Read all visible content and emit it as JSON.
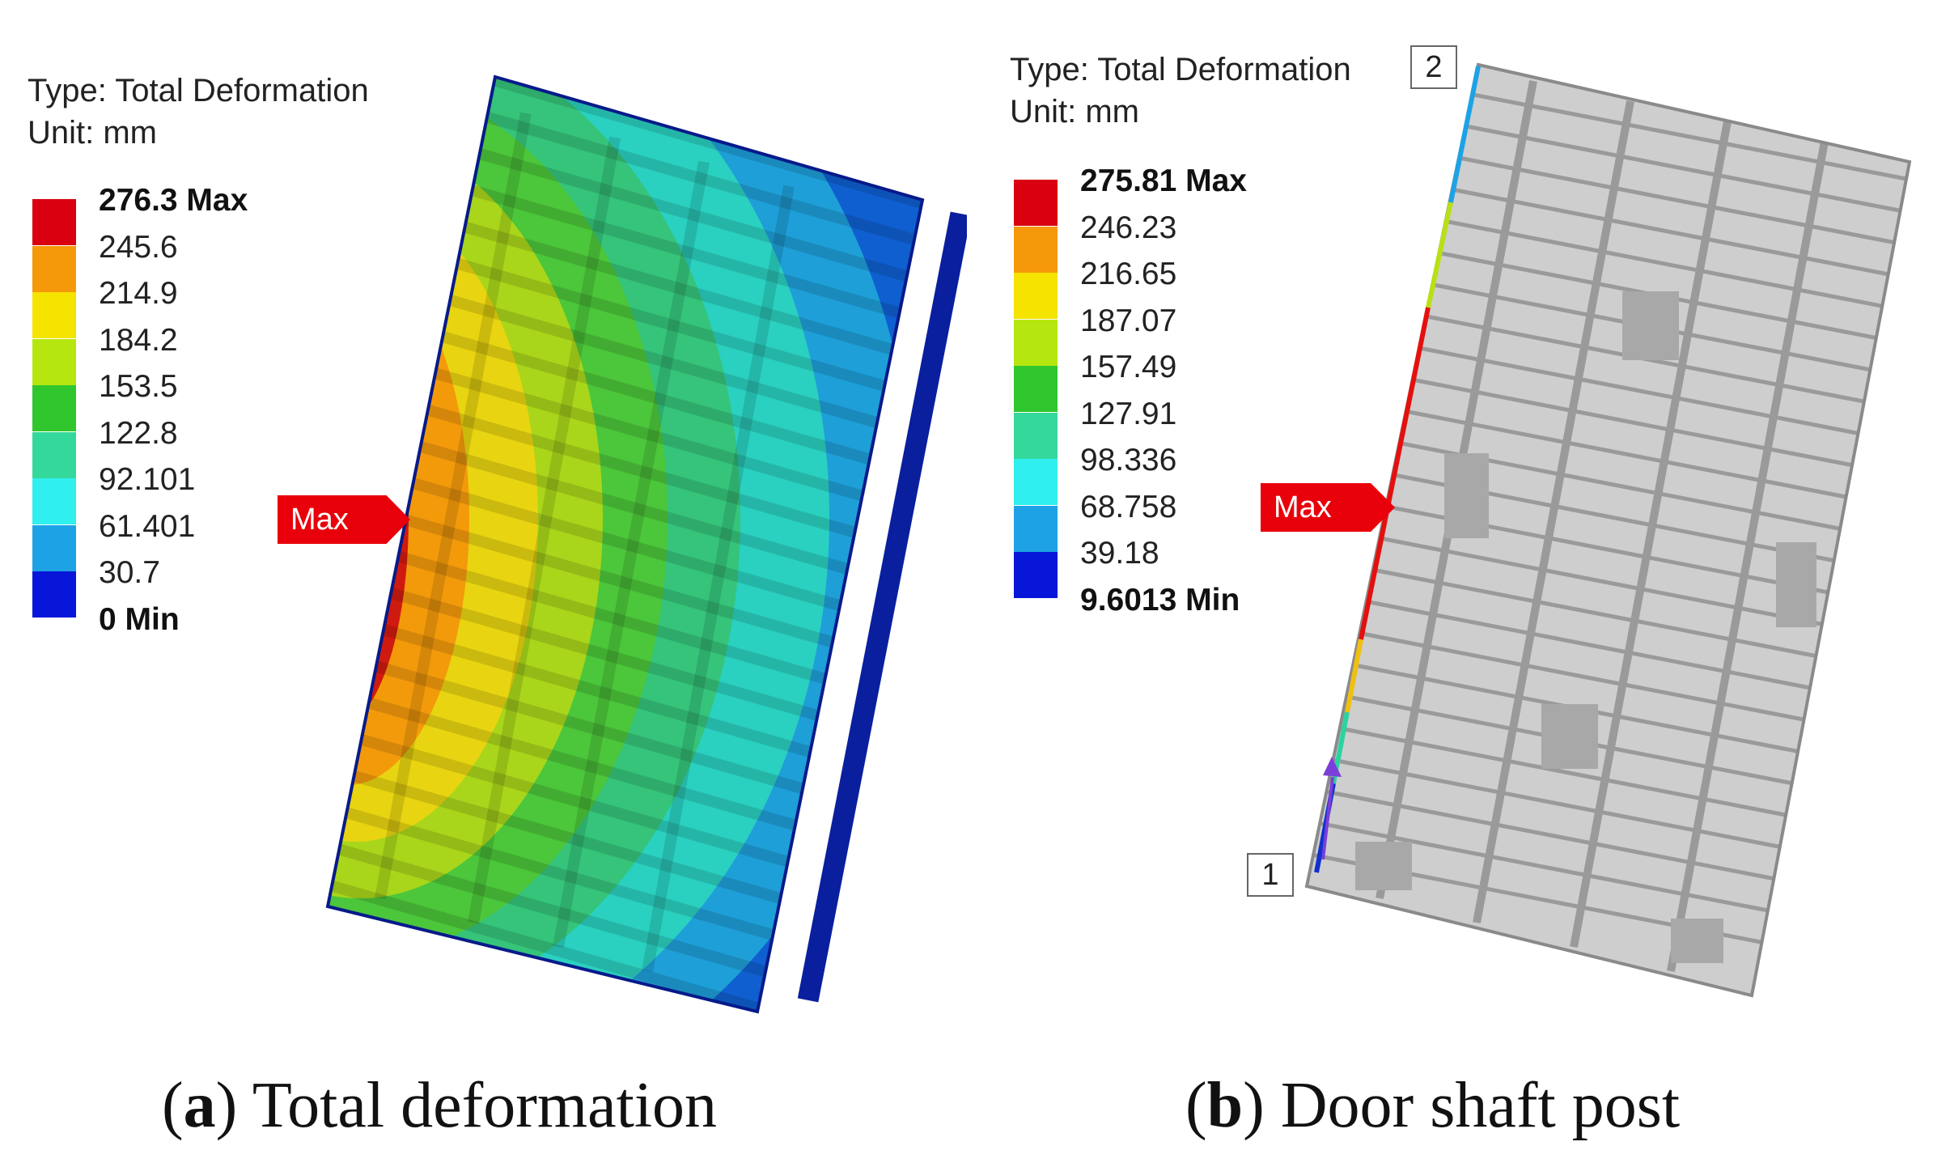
{
  "panel_a": {
    "type_line": "Type: Total Deformation",
    "unit_line": "Unit: mm",
    "legend": [
      {
        "label": "276.3 Max",
        "color": "#d9000f",
        "bold": true
      },
      {
        "label": "245.6",
        "color": "#f5980a",
        "bold": false
      },
      {
        "label": "214.9",
        "color": "#f5e300",
        "bold": false
      },
      {
        "label": "184.2",
        "color": "#b5e610",
        "bold": false
      },
      {
        "label": "153.5",
        "color": "#30c62d",
        "bold": false
      },
      {
        "label": "122.8",
        "color": "#35d89b",
        "bold": false
      },
      {
        "label": "92.101",
        "color": "#2ff0ee",
        "bold": false
      },
      {
        "label": "61.401",
        "color": "#1ea2e6",
        "bold": false
      },
      {
        "label": "30.7",
        "color": "#0716d8",
        "bold": false
      },
      {
        "label": "0 Min",
        "color": "",
        "bold": true
      }
    ],
    "max_flag": "Max",
    "caption_letter": "a",
    "caption_text": " Total deformation"
  },
  "panel_b": {
    "type_line": "Type: Total Deformation",
    "unit_line": "Unit: mm",
    "legend": [
      {
        "label": "275.81 Max",
        "color": "#d9000f",
        "bold": true
      },
      {
        "label": "246.23",
        "color": "#f5980a",
        "bold": false
      },
      {
        "label": "216.65",
        "color": "#f5e300",
        "bold": false
      },
      {
        "label": "187.07",
        "color": "#b5e610",
        "bold": false
      },
      {
        "label": "157.49",
        "color": "#30c62d",
        "bold": false
      },
      {
        "label": "127.91",
        "color": "#35d89b",
        "bold": false
      },
      {
        "label": "98.336",
        "color": "#2ff0ee",
        "bold": false
      },
      {
        "label": "68.758",
        "color": "#1ea2e6",
        "bold": false
      },
      {
        "label": "39.18",
        "color": "#0716d8",
        "bold": false
      },
      {
        "label": "9.6013 Min",
        "color": "",
        "bold": true
      }
    ],
    "max_flag": "Max",
    "point_1": "1",
    "point_2": "2",
    "caption_letter": "b",
    "caption_text": " Door shaft post"
  }
}
